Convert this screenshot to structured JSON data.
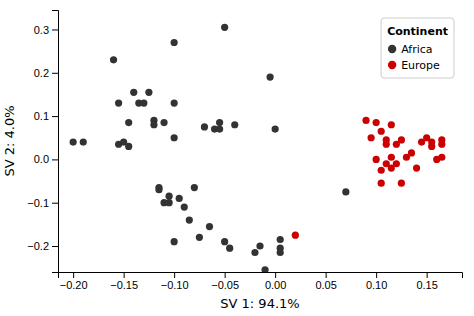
{
  "chart_data": {
    "type": "scatter",
    "xlabel": "SV 1: 94.1%",
    "ylabel": "SV 2: 4.0%",
    "xlim": [
      -0.215,
      0.185
    ],
    "ylim": [
      -0.26,
      0.345
    ],
    "xticks": [
      {
        "value": -0.2,
        "label": "−0.20"
      },
      {
        "value": -0.15,
        "label": "−0.15"
      },
      {
        "value": -0.1,
        "label": "−0.10"
      },
      {
        "value": -0.05,
        "label": "−0.05"
      },
      {
        "value": 0.0,
        "label": "0.00"
      },
      {
        "value": 0.05,
        "label": "0.05"
      },
      {
        "value": 0.1,
        "label": "0.10"
      },
      {
        "value": 0.15,
        "label": "0.15"
      }
    ],
    "yticks": [
      {
        "value": -0.2,
        "label": "−0.2"
      },
      {
        "value": -0.1,
        "label": "−0.1"
      },
      {
        "value": 0.0,
        "label": "0.0"
      },
      {
        "value": 0.1,
        "label": "0.1"
      },
      {
        "value": 0.2,
        "label": "0.2"
      },
      {
        "value": 0.3,
        "label": "0.3"
      }
    ],
    "legend": "upper right",
    "legend_title": "Continent",
    "series": [
      {
        "name": "Africa",
        "color": "#333333",
        "x": [
          -0.2,
          -0.19,
          -0.16,
          -0.155,
          -0.155,
          -0.15,
          -0.145,
          -0.145,
          -0.14,
          -0.135,
          -0.13,
          -0.125,
          -0.12,
          -0.12,
          -0.115,
          -0.115,
          -0.11,
          -0.11,
          -0.105,
          -0.105,
          -0.1,
          -0.1,
          -0.1,
          -0.1,
          -0.095,
          -0.09,
          -0.085,
          -0.08,
          -0.075,
          -0.07,
          -0.065,
          -0.06,
          -0.055,
          -0.055,
          -0.05,
          -0.05,
          -0.045,
          -0.04,
          -0.02,
          -0.015,
          -0.01,
          -0.005,
          0.0,
          0.005,
          0.005,
          0.005,
          0.07
        ],
        "values": [
          0.04,
          0.04,
          0.23,
          0.035,
          0.13,
          0.04,
          0.085,
          0.03,
          0.155,
          0.13,
          0.13,
          0.155,
          0.09,
          0.08,
          -0.065,
          -0.07,
          0.085,
          -0.1,
          -0.1,
          -0.085,
          0.27,
          0.13,
          0.05,
          -0.19,
          -0.09,
          -0.11,
          -0.14,
          -0.065,
          -0.18,
          0.075,
          -0.155,
          0.07,
          0.085,
          0.07,
          0.305,
          -0.19,
          -0.205,
          0.08,
          -0.215,
          -0.2,
          -0.255,
          0.19,
          0.07,
          -0.205,
          -0.215,
          -0.185,
          -0.075
        ]
      },
      {
        "name": "Europe",
        "color": "#cc0000",
        "x": [
          0.09,
          0.095,
          0.1,
          0.1,
          0.105,
          0.105,
          0.105,
          0.11,
          0.11,
          0.11,
          0.115,
          0.115,
          0.115,
          0.12,
          0.12,
          0.125,
          0.125,
          0.13,
          0.135,
          0.14,
          0.145,
          0.15,
          0.155,
          0.155,
          0.16,
          0.165,
          0.165,
          0.165,
          0.02
        ],
        "values": [
          0.09,
          0.05,
          0.085,
          0.0,
          -0.055,
          0.065,
          -0.025,
          0.035,
          -0.01,
          0.045,
          0.005,
          -0.02,
          0.08,
          -0.01,
          0.035,
          0.045,
          -0.055,
          0.005,
          0.015,
          -0.02,
          0.04,
          0.05,
          0.03,
          0.04,
          0.0,
          0.005,
          0.035,
          0.045,
          -0.175
        ]
      }
    ]
  }
}
